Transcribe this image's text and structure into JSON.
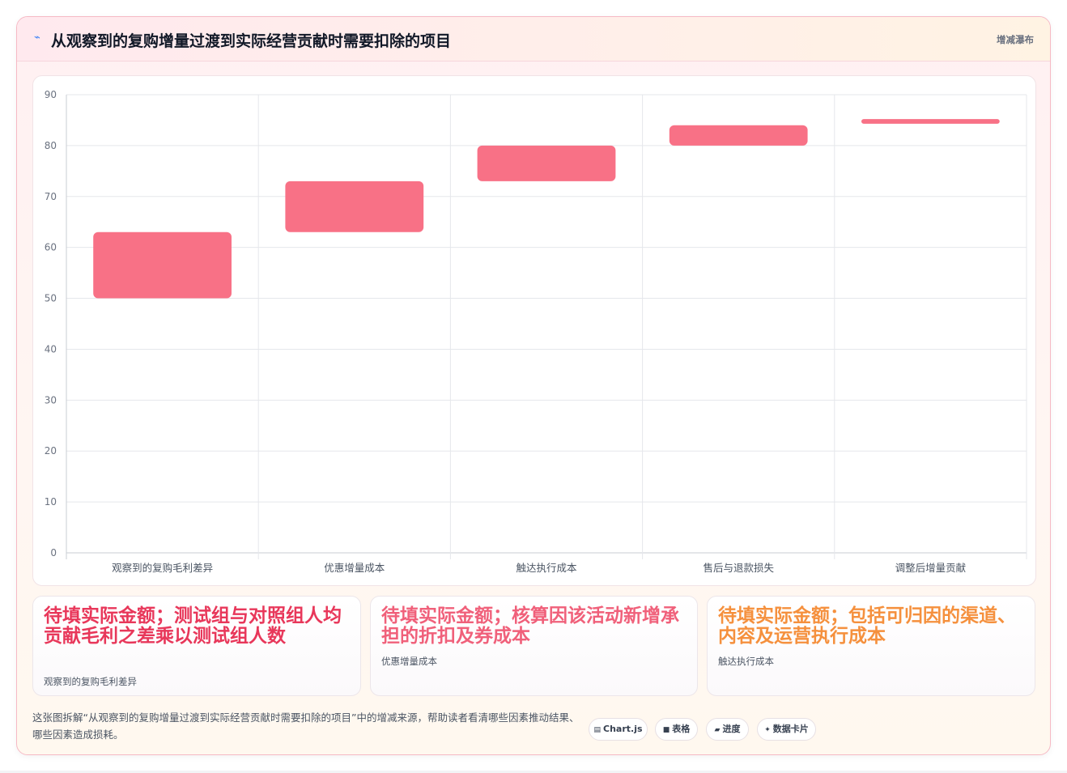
{
  "header": {
    "icon": "chart-spark-icon",
    "title": "从观察到的复购增量过渡到实际经营贡献时需要扣除的项目",
    "tag": "增减瀑布"
  },
  "chart_data": {
    "type": "bar",
    "subtype": "floating-waterfall",
    "categories": [
      "观察到的复购毛利差异",
      "优惠增量成本",
      "触达执行成本",
      "售后与退款损失",
      "调整后增量贡献"
    ],
    "ranges": [
      [
        50,
        63
      ],
      [
        63,
        73
      ],
      [
        73,
        80
      ],
      [
        80,
        84
      ],
      [
        84.3,
        85.2
      ]
    ],
    "ylim": [
      0,
      90
    ],
    "yticks": [
      0,
      10,
      20,
      30,
      40,
      50,
      60,
      70,
      80,
      90
    ],
    "color": "#f87186",
    "grid": true,
    "legend": "none"
  },
  "stats": [
    {
      "value": "待填实际金额；测试组与对照组人均贡献毛利之差乘以测试组人数",
      "label": "观察到的复购毛利差异",
      "color": "#e8375a"
    },
    {
      "value": "待填实际金额；核算因该活动新增承担的折扣及券成本",
      "label": "优惠增量成本",
      "color": "#f0607a"
    },
    {
      "value": "待填实际金额；包括可归因的渠道、内容及运营执行成本",
      "label": "触达执行成本",
      "color": "#f5903d"
    }
  ],
  "footer": {
    "description": "这张图拆解“从观察到的复购增量过渡到实际经营贡献时需要扣除的项目”中的增减来源，帮助读者看清哪些因素推动结果、哪些因素造成损耗。",
    "chips": [
      {
        "icon": "chart-icon",
        "glyph": "▤",
        "label": "Chart.js"
      },
      {
        "icon": "table-icon",
        "glyph": "■",
        "label": "表格"
      },
      {
        "icon": "progress-icon",
        "glyph": "▰",
        "label": "进度"
      },
      {
        "icon": "data-card-icon",
        "glyph": "✦",
        "label": "数据卡片"
      }
    ]
  }
}
